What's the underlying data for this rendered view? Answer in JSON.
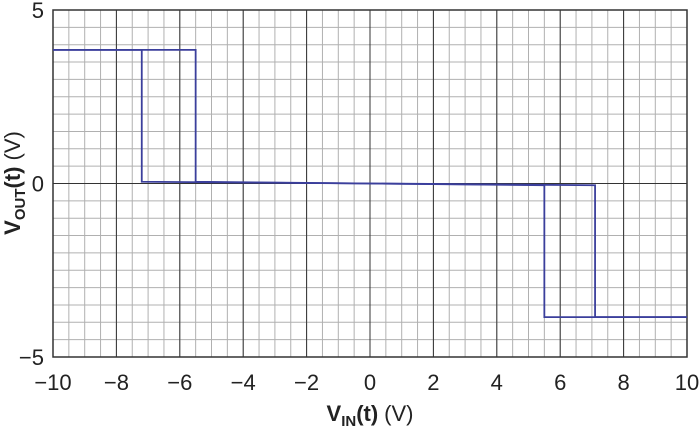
{
  "chart_data": {
    "type": "line",
    "xlabel": {
      "main": "V",
      "sub": "IN",
      "arg": "(t)",
      "unit": "(V)"
    },
    "ylabel": {
      "main": "V",
      "sub": "OUT",
      "arg": "(t)",
      "unit": "(V)"
    },
    "xlim": [
      -10,
      10
    ],
    "xticks": [
      {
        "value": -10,
        "label": "−10"
      },
      {
        "value": -8,
        "label": "−8"
      },
      {
        "value": -6,
        "label": "−6"
      },
      {
        "value": -4,
        "label": "−4"
      },
      {
        "value": -2,
        "label": "−2"
      },
      0,
      2,
      4,
      6,
      8,
      10
    ],
    "ylim": [
      -5,
      5
    ],
    "yticks": [
      {
        "value": -5,
        "label": "−5"
      },
      0,
      5
    ],
    "grid": true,
    "minor_grid_step": 0.5,
    "series": [
      {
        "color": "#3b3f9c",
        "x": [
          -10,
          -5.5,
          -5.5,
          0,
          7.1,
          7.1,
          10
        ],
        "values": [
          3.85,
          3.85,
          0.05,
          0,
          -0.05,
          -3.85,
          -3.85
        ]
      },
      {
        "color": "#3b3f9c",
        "x": [
          10,
          5.5,
          5.5,
          0,
          -7.2,
          -7.2,
          -10
        ],
        "values": [
          -3.85,
          -3.85,
          -0.05,
          0,
          0.05,
          3.85,
          3.85
        ]
      }
    ]
  }
}
